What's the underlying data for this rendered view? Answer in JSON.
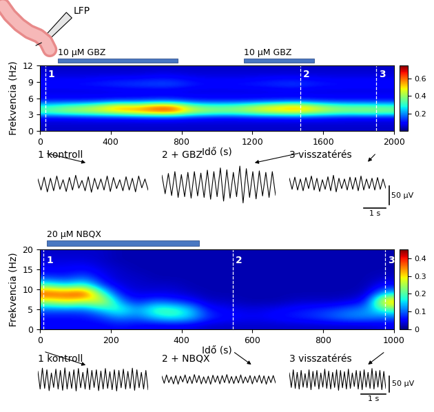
{
  "electrode_label": "LFP",
  "chart_data": [
    {
      "type": "heatmap",
      "x_label": "Idő (s)",
      "y_label": "Frekvencia (Hz)",
      "xlim": [
        0,
        2000
      ],
      "xticks": [
        0,
        400,
        800,
        1200,
        1600,
        2000
      ],
      "ylim": [
        0,
        12
      ],
      "yticks": [
        0,
        3,
        6,
        9,
        12
      ],
      "time_bins": [
        0,
        100,
        200,
        300,
        400,
        500,
        600,
        700,
        800,
        900,
        1000,
        1100,
        1200,
        1300,
        1400,
        1500,
        1600,
        1700,
        1800,
        1900,
        2000
      ],
      "freq_bins": [
        0,
        1,
        2,
        3,
        4,
        5,
        6,
        7,
        8,
        9,
        10,
        11,
        12
      ],
      "cells": [
        [
          0.05,
          0.06,
          0.1,
          0.35,
          0.3,
          0.12,
          0.08,
          0.07,
          0.1,
          0.08,
          0.06,
          0.05
        ],
        [
          0.05,
          0.06,
          0.1,
          0.4,
          0.35,
          0.12,
          0.08,
          0.07,
          0.1,
          0.08,
          0.06,
          0.05
        ],
        [
          0.05,
          0.06,
          0.11,
          0.42,
          0.38,
          0.12,
          0.08,
          0.07,
          0.11,
          0.08,
          0.06,
          0.05
        ],
        [
          0.05,
          0.06,
          0.12,
          0.45,
          0.45,
          0.13,
          0.08,
          0.07,
          0.12,
          0.09,
          0.06,
          0.05
        ],
        [
          0.05,
          0.06,
          0.12,
          0.5,
          0.55,
          0.15,
          0.08,
          0.08,
          0.13,
          0.1,
          0.06,
          0.05
        ],
        [
          0.05,
          0.06,
          0.13,
          0.55,
          0.5,
          0.15,
          0.08,
          0.08,
          0.14,
          0.1,
          0.06,
          0.05
        ],
        [
          0.05,
          0.06,
          0.14,
          0.6,
          0.6,
          0.16,
          0.09,
          0.08,
          0.15,
          0.11,
          0.07,
          0.05
        ],
        [
          0.05,
          0.06,
          0.14,
          0.62,
          0.6,
          0.16,
          0.09,
          0.08,
          0.15,
          0.11,
          0.07,
          0.05
        ],
        [
          0.05,
          0.06,
          0.12,
          0.45,
          0.4,
          0.13,
          0.08,
          0.07,
          0.12,
          0.09,
          0.06,
          0.05
        ],
        [
          0.05,
          0.06,
          0.11,
          0.4,
          0.35,
          0.12,
          0.08,
          0.07,
          0.1,
          0.08,
          0.06,
          0.05
        ],
        [
          0.05,
          0.06,
          0.1,
          0.38,
          0.35,
          0.12,
          0.08,
          0.07,
          0.1,
          0.08,
          0.06,
          0.05
        ],
        [
          0.05,
          0.06,
          0.11,
          0.4,
          0.38,
          0.12,
          0.08,
          0.07,
          0.11,
          0.08,
          0.06,
          0.05
        ],
        [
          0.05,
          0.06,
          0.12,
          0.45,
          0.45,
          0.13,
          0.08,
          0.07,
          0.12,
          0.09,
          0.06,
          0.05
        ],
        [
          0.05,
          0.06,
          0.12,
          0.48,
          0.5,
          0.14,
          0.08,
          0.08,
          0.13,
          0.1,
          0.06,
          0.05
        ],
        [
          0.05,
          0.06,
          0.13,
          0.5,
          0.55,
          0.15,
          0.08,
          0.08,
          0.14,
          0.1,
          0.06,
          0.05
        ],
        [
          0.05,
          0.06,
          0.12,
          0.45,
          0.45,
          0.13,
          0.08,
          0.07,
          0.12,
          0.09,
          0.06,
          0.05
        ],
        [
          0.05,
          0.06,
          0.11,
          0.4,
          0.38,
          0.12,
          0.08,
          0.07,
          0.11,
          0.08,
          0.06,
          0.05
        ],
        [
          0.05,
          0.06,
          0.1,
          0.38,
          0.35,
          0.12,
          0.08,
          0.07,
          0.1,
          0.08,
          0.06,
          0.05
        ],
        [
          0.05,
          0.06,
          0.1,
          0.4,
          0.35,
          0.12,
          0.08,
          0.07,
          0.1,
          0.08,
          0.06,
          0.05
        ],
        [
          0.05,
          0.06,
          0.1,
          0.38,
          0.33,
          0.12,
          0.08,
          0.07,
          0.1,
          0.08,
          0.06,
          0.05
        ]
      ],
      "color_range": [
        0,
        0.75
      ],
      "color_ticks": [
        0.2,
        0.4,
        0.6
      ],
      "drug_bars": [
        {
          "label": "10 µM GBZ",
          "start": 100,
          "end": 780
        },
        {
          "label": "10 µM GBZ",
          "start": 1150,
          "end": 1550
        }
      ],
      "markers": [
        {
          "label": "1",
          "x": 30
        },
        {
          "label": "2",
          "x": 1470
        },
        {
          "label": "3",
          "x": 1900
        }
      ],
      "traces": [
        {
          "label": "1 kontroll",
          "values": [
            10,
            -20,
            15,
            -25,
            12,
            -22,
            18,
            -18,
            8,
            -24,
            14,
            -20,
            20,
            -15,
            6,
            -22,
            16,
            -26,
            12,
            -18,
            10,
            -20,
            18,
            -24,
            14,
            -16,
            8,
            -22,
            16,
            -20,
            12,
            -25,
            18,
            -14,
            10,
            -20
          ]
        },
        {
          "label": "2 + GBZ",
          "values": [
            20,
            -30,
            25,
            -35,
            30,
            -40,
            22,
            -38,
            28,
            -42,
            30,
            -36,
            26,
            -40,
            34,
            -45,
            30,
            -38,
            40,
            -50,
            35,
            -42,
            28,
            -38,
            45,
            -55,
            38,
            -40,
            30,
            -44,
            32,
            -36,
            28,
            -40,
            30,
            -34
          ]
        },
        {
          "label": "3 visszatérés",
          "values": [
            12,
            -18,
            15,
            -20,
            10,
            -22,
            14,
            -16,
            18,
            -20,
            12,
            -24,
            8,
            -18,
            16,
            -22,
            20,
            -25,
            12,
            -16,
            10,
            -20,
            15,
            -18,
            14,
            -22,
            18,
            -20,
            10,
            -16,
            12,
            -20,
            14,
            -18,
            10,
            -15
          ]
        }
      ],
      "trace_sample_interval": 0.125,
      "scale_bar": {
        "amplitude": 50,
        "amplitude_label": "50 µV",
        "time": 1,
        "time_label": "1 s"
      }
    },
    {
      "type": "heatmap",
      "x_label": "Idő (s)",
      "y_label": "Frekvencia (Hz)",
      "xlim": [
        0,
        1000
      ],
      "xticks": [
        0,
        200,
        400,
        600,
        800,
        1000
      ],
      "ylim": [
        0,
        20
      ],
      "yticks": [
        0,
        5,
        10,
        15,
        20
      ],
      "time_bins": [
        0,
        50,
        100,
        150,
        200,
        250,
        300,
        350,
        400,
        450,
        500,
        550,
        600,
        650,
        700,
        750,
        800,
        850,
        900,
        950,
        1000
      ],
      "freq_bins": [
        0,
        2,
        4,
        6,
        8,
        10,
        12,
        14,
        16,
        18,
        20
      ],
      "cells": [
        [
          0.05,
          0.06,
          0.1,
          0.25,
          0.4,
          0.2,
          0.08,
          0.05,
          0.04,
          0.03
        ],
        [
          0.05,
          0.06,
          0.1,
          0.3,
          0.38,
          0.15,
          0.07,
          0.05,
          0.04,
          0.03
        ],
        [
          0.05,
          0.06,
          0.1,
          0.25,
          0.42,
          0.2,
          0.1,
          0.06,
          0.04,
          0.03
        ],
        [
          0.05,
          0.08,
          0.15,
          0.3,
          0.2,
          0.08,
          0.05,
          0.04,
          0.03,
          0.03
        ],
        [
          0.06,
          0.12,
          0.2,
          0.12,
          0.06,
          0.04,
          0.03,
          0.03,
          0.02,
          0.02
        ],
        [
          0.05,
          0.1,
          0.12,
          0.06,
          0.04,
          0.03,
          0.03,
          0.02,
          0.02,
          0.02
        ],
        [
          0.04,
          0.15,
          0.2,
          0.1,
          0.04,
          0.03,
          0.02,
          0.02,
          0.02,
          0.02
        ],
        [
          0.04,
          0.18,
          0.2,
          0.08,
          0.04,
          0.03,
          0.02,
          0.02,
          0.02,
          0.02
        ],
        [
          0.04,
          0.15,
          0.15,
          0.06,
          0.03,
          0.02,
          0.02,
          0.02,
          0.02,
          0.02
        ],
        [
          0.03,
          0.08,
          0.06,
          0.03,
          0.02,
          0.02,
          0.02,
          0.02,
          0.02,
          0.02
        ],
        [
          0.03,
          0.06,
          0.05,
          0.03,
          0.02,
          0.02,
          0.02,
          0.02,
          0.02,
          0.02
        ],
        [
          0.03,
          0.05,
          0.04,
          0.02,
          0.02,
          0.02,
          0.02,
          0.02,
          0.02,
          0.02
        ],
        [
          0.03,
          0.05,
          0.04,
          0.02,
          0.02,
          0.02,
          0.02,
          0.02,
          0.02,
          0.02
        ],
        [
          0.03,
          0.06,
          0.05,
          0.02,
          0.02,
          0.02,
          0.02,
          0.02,
          0.02,
          0.02
        ],
        [
          0.03,
          0.07,
          0.06,
          0.03,
          0.02,
          0.02,
          0.02,
          0.02,
          0.02,
          0.02
        ],
        [
          0.03,
          0.08,
          0.07,
          0.03,
          0.02,
          0.02,
          0.02,
          0.02,
          0.02,
          0.02
        ],
        [
          0.03,
          0.1,
          0.08,
          0.03,
          0.02,
          0.02,
          0.02,
          0.02,
          0.02,
          0.02
        ],
        [
          0.03,
          0.12,
          0.1,
          0.04,
          0.02,
          0.02,
          0.02,
          0.02,
          0.02,
          0.02
        ],
        [
          0.03,
          0.12,
          0.12,
          0.06,
          0.03,
          0.02,
          0.02,
          0.02,
          0.02,
          0.02
        ],
        [
          0.04,
          0.1,
          0.2,
          0.35,
          0.15,
          0.06,
          0.03,
          0.02,
          0.02,
          0.02
        ]
      ],
      "color_range": [
        0,
        0.45
      ],
      "color_ticks": [
        0,
        0.1,
        0.2,
        0.3,
        0.4
      ],
      "drug_bars": [
        {
          "label": "20 µM NBQX",
          "start": 20,
          "end": 450
        }
      ],
      "markers": [
        {
          "label": "1",
          "x": 10
        },
        {
          "label": "2",
          "x": 545
        },
        {
          "label": "3",
          "x": 975
        }
      ],
      "traces": [
        {
          "label": "1 kontroll",
          "values": [
            25,
            -30,
            35,
            -28,
            30,
            -35,
            20,
            -25,
            32,
            -30,
            28,
            -34,
            36,
            -30,
            24,
            -28,
            30,
            -36,
            34,
            -26,
            22,
            -30,
            35,
            -32,
            28,
            -25,
            30,
            -35,
            26,
            -30,
            34,
            -28,
            24,
            -32,
            30,
            -36,
            28,
            -26,
            32,
            -30,
            25,
            -28,
            35,
            -34,
            30,
            -26,
            22,
            -30,
            28,
            -32
          ]
        },
        {
          "label": "2 + NBQX",
          "values": [
            10,
            -12,
            14,
            -10,
            8,
            -14,
            12,
            -15,
            10,
            -8,
            14,
            -12,
            9,
            -13,
            15,
            -10,
            12,
            -14,
            8,
            -12,
            10,
            -15,
            13,
            -9,
            11,
            -14,
            12,
            -10,
            15,
            -12,
            9,
            -13,
            10,
            -11,
            14,
            -12,
            8,
            -10,
            12,
            -14,
            10,
            -9,
            13,
            -12,
            11,
            -15,
            10,
            -10,
            12,
            -11
          ]
        },
        {
          "label": "3 visszatérés",
          "values": [
            20,
            -25,
            30,
            -28,
            22,
            -30,
            28,
            -24,
            18,
            -26,
            30,
            -32,
            25,
            -22,
            28,
            -30,
            20,
            -24,
            32,
            -28,
            26,
            -30,
            22,
            -25,
            30,
            -34,
            28,
            -26,
            24,
            -30,
            32,
            -28,
            20,
            -22,
            28,
            -30,
            26,
            -32,
            30,
            -24,
            22,
            -28,
            34,
            -30,
            26,
            -24,
            28,
            -32,
            25,
            -28
          ]
        }
      ],
      "trace_sample_interval": 0.08,
      "scale_bar": {
        "amplitude": 50,
        "amplitude_label": "50 µV",
        "time": 1,
        "time_label": "1 s"
      }
    }
  ]
}
